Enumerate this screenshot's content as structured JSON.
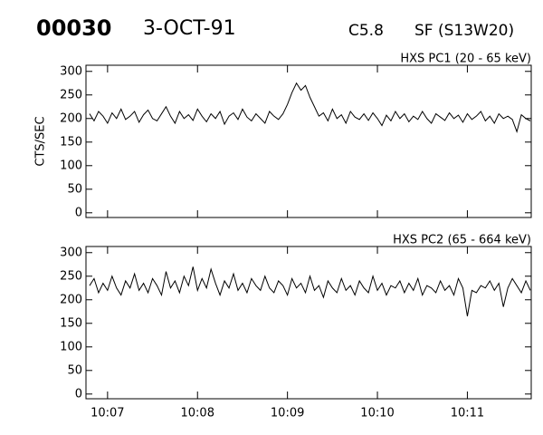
{
  "header": {
    "id": "00030",
    "date": "3-OCT-91",
    "class": "C5.8",
    "location": "SF (S13W20)"
  },
  "chart_data": [
    {
      "type": "line",
      "subtitle": "HXS PC1 (20 - 65 keV)",
      "ylabel": "CTS/SEC",
      "color": "#000000",
      "x": [
        6.8,
        6.85,
        6.9,
        6.95,
        7.0,
        7.05,
        7.1,
        7.15,
        7.2,
        7.25,
        7.3,
        7.35,
        7.4,
        7.45,
        7.5,
        7.55,
        7.6,
        7.65,
        7.7,
        7.75,
        7.8,
        7.85,
        7.9,
        7.95,
        8.0,
        8.05,
        8.1,
        8.15,
        8.2,
        8.25,
        8.3,
        8.35,
        8.4,
        8.45,
        8.5,
        8.55,
        8.6,
        8.65,
        8.7,
        8.75,
        8.8,
        8.85,
        8.9,
        8.95,
        9.0,
        9.05,
        9.1,
        9.15,
        9.2,
        9.25,
        9.3,
        9.35,
        9.4,
        9.45,
        9.5,
        9.55,
        9.6,
        9.65,
        9.7,
        9.75,
        9.8,
        9.85,
        9.9,
        9.95,
        10.0,
        10.05,
        10.1,
        10.15,
        10.2,
        10.25,
        10.3,
        10.35,
        10.4,
        10.45,
        10.5,
        10.55,
        10.6,
        10.65,
        10.7,
        10.75,
        10.8,
        10.85,
        10.9,
        10.95,
        11.0,
        11.05,
        11.1,
        11.15,
        11.2,
        11.25,
        11.3,
        11.35,
        11.4,
        11.45,
        11.5,
        11.55,
        11.6,
        11.65,
        11.7
      ],
      "values": [
        210,
        195,
        215,
        205,
        190,
        212,
        200,
        220,
        198,
        205,
        215,
        192,
        208,
        218,
        200,
        195,
        210,
        225,
        205,
        190,
        215,
        200,
        208,
        196,
        220,
        205,
        193,
        210,
        200,
        215,
        188,
        205,
        212,
        198,
        220,
        203,
        195,
        210,
        200,
        190,
        215,
        205,
        198,
        210,
        230,
        255,
        275,
        260,
        270,
        245,
        225,
        205,
        212,
        195,
        220,
        200,
        208,
        190,
        215,
        203,
        198,
        210,
        196,
        212,
        200,
        185,
        207,
        195,
        215,
        200,
        210,
        193,
        205,
        198,
        215,
        200,
        190,
        210,
        203,
        196,
        212,
        200,
        207,
        192,
        210,
        198,
        205,
        215,
        195,
        205,
        190,
        210,
        200,
        205,
        198,
        172,
        208,
        200,
        195
      ],
      "xlim": [
        6.76,
        11.71
      ],
      "xticks": [
        7,
        8,
        9,
        10,
        11
      ],
      "ylim": [
        -10,
        313
      ],
      "yticks": [
        0,
        50,
        100,
        150,
        200,
        250,
        300
      ]
    },
    {
      "type": "line",
      "subtitle": "HXS PC2 (65 - 664 keV)",
      "color": "#000000",
      "x": [
        6.8,
        6.85,
        6.9,
        6.95,
        7.0,
        7.05,
        7.1,
        7.15,
        7.2,
        7.25,
        7.3,
        7.35,
        7.4,
        7.45,
        7.5,
        7.55,
        7.6,
        7.65,
        7.7,
        7.75,
        7.8,
        7.85,
        7.9,
        7.95,
        8.0,
        8.05,
        8.1,
        8.15,
        8.2,
        8.25,
        8.3,
        8.35,
        8.4,
        8.45,
        8.5,
        8.55,
        8.6,
        8.65,
        8.7,
        8.75,
        8.8,
        8.85,
        8.9,
        8.95,
        9.0,
        9.05,
        9.1,
        9.15,
        9.2,
        9.25,
        9.3,
        9.35,
        9.4,
        9.45,
        9.5,
        9.55,
        9.6,
        9.65,
        9.7,
        9.75,
        9.8,
        9.85,
        9.9,
        9.95,
        10.0,
        10.05,
        10.1,
        10.15,
        10.2,
        10.25,
        10.3,
        10.35,
        10.4,
        10.45,
        10.5,
        10.55,
        10.6,
        10.65,
        10.7,
        10.75,
        10.8,
        10.85,
        10.9,
        10.95,
        11.0,
        11.05,
        11.1,
        11.15,
        11.2,
        11.25,
        11.3,
        11.35,
        11.4,
        11.45,
        11.5,
        11.55,
        11.6,
        11.65,
        11.7
      ],
      "values": [
        230,
        245,
        215,
        235,
        220,
        250,
        225,
        210,
        240,
        225,
        255,
        220,
        235,
        215,
        245,
        230,
        210,
        260,
        225,
        240,
        215,
        250,
        230,
        270,
        220,
        245,
        225,
        265,
        235,
        210,
        240,
        225,
        255,
        220,
        235,
        215,
        245,
        230,
        220,
        250,
        225,
        215,
        240,
        230,
        210,
        245,
        225,
        235,
        215,
        250,
        220,
        230,
        205,
        240,
        225,
        215,
        245,
        220,
        230,
        210,
        240,
        225,
        215,
        250,
        220,
        235,
        210,
        230,
        225,
        240,
        215,
        235,
        220,
        245,
        210,
        230,
        225,
        215,
        240,
        220,
        230,
        210,
        245,
        225,
        165,
        220,
        215,
        230,
        225,
        240,
        220,
        235,
        185,
        225,
        245,
        230,
        215,
        240,
        220
      ],
      "xlim": [
        6.76,
        11.71
      ],
      "xticks": [
        {
          "value": 7,
          "label": "10:07"
        },
        {
          "value": 8,
          "label": "10:08"
        },
        {
          "value": 9,
          "label": "10:09"
        },
        {
          "value": 10,
          "label": "10:10"
        },
        {
          "value": 11,
          "label": "10:11"
        }
      ],
      "ylim": [
        -10,
        313
      ],
      "yticks": [
        0,
        50,
        100,
        150,
        200,
        250,
        300
      ]
    }
  ]
}
